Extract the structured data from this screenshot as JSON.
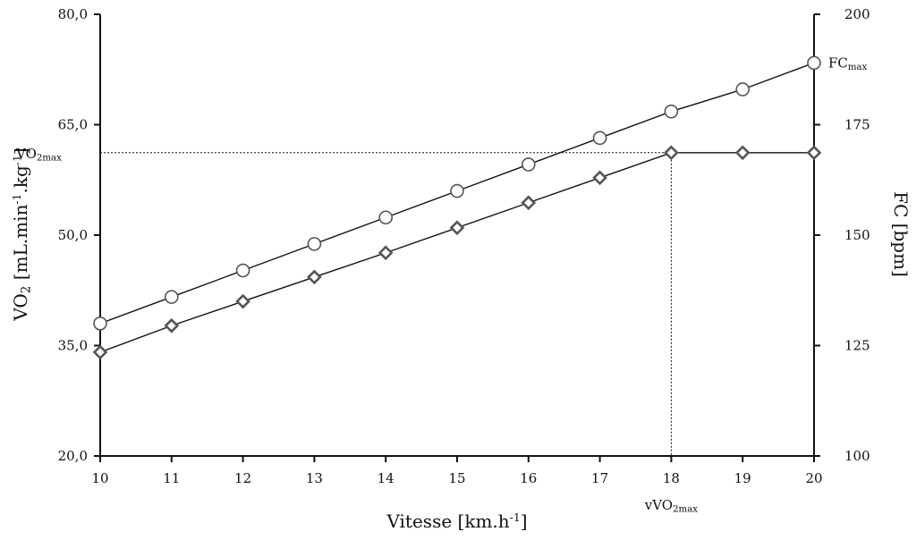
{
  "chart_data": {
    "type": "line",
    "x": [
      10,
      11,
      12,
      13,
      14,
      15,
      16,
      17,
      18,
      19,
      20
    ],
    "x_tick_labels": [
      "10",
      "11",
      "12",
      "13",
      "14",
      "15",
      "16",
      "17",
      "18",
      "19",
      "20"
    ],
    "xlim": [
      10,
      20
    ],
    "xlabel": "Vitesse [km.h-1]",
    "ylabel_left": "VO2 [mL.min-1.kg-1]",
    "ylim_left": [
      20.0,
      80.0
    ],
    "y_left_ticks": [
      20.0,
      35.0,
      50.0,
      65.0,
      80.0
    ],
    "y_left_tick_labels": [
      "20,0",
      "35,0",
      "50,0",
      "65,0",
      "80,0"
    ],
    "ylabel_right": "FC [bpm]",
    "ylim_right": [
      100,
      200
    ],
    "y_right_ticks": [
      100,
      125,
      150,
      175,
      200
    ],
    "y_right_tick_labels": [
      "100",
      "125",
      "150",
      "175",
      "200"
    ],
    "series": [
      {
        "axis": "right",
        "marker": "circle",
        "values": [
          130,
          136,
          142,
          148,
          154,
          160,
          166,
          172,
          178,
          183,
          189
        ]
      },
      {
        "axis": "left",
        "marker": "diamond",
        "values": [
          34.1,
          37.7,
          41.0,
          44.3,
          47.6,
          51.0,
          54.4,
          57.8,
          61.2,
          61.2,
          61.2
        ]
      }
    ],
    "annotations": {
      "vo2max_label": "VO2max",
      "vo2max_value": 61.2,
      "fcmax_label": "FCmax",
      "vvo2max_label": "vVO2max",
      "vvo2max_x": 18
    },
    "grid": false,
    "legend": "none"
  }
}
